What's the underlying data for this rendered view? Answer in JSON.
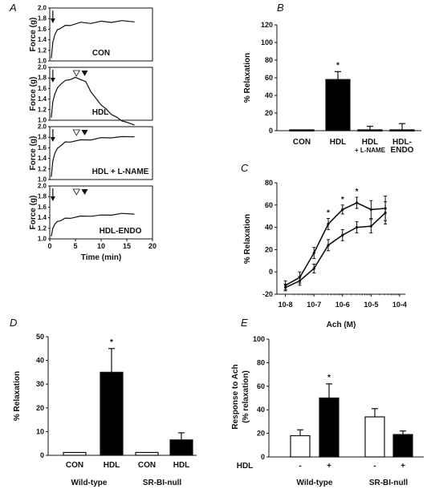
{
  "colors": {
    "ink": "#111111",
    "open": "#ffffff",
    "filled": "#000000"
  },
  "chart_data": [
    {
      "panel": "A",
      "type": "line",
      "ylabel": "Force (g)",
      "xlabel": "Time (min)",
      "xlim": [
        0,
        20
      ],
      "ylim": [
        1.0,
        2.0
      ],
      "xticks": [
        "0",
        "5",
        "10",
        "15",
        "20"
      ],
      "yticks": [
        "1.0",
        "1.2",
        "1.4",
        "1.6",
        "1.8",
        "2.0"
      ],
      "traces": [
        {
          "label": "CON",
          "open_marker_min": null,
          "filled_marker_min": null,
          "x": [
            0.3,
            0.6,
            1,
            1.5,
            2,
            3,
            4,
            6,
            8,
            10,
            12,
            14,
            16.5
          ],
          "y": [
            1.05,
            1.35,
            1.5,
            1.58,
            1.62,
            1.66,
            1.68,
            1.72,
            1.72,
            1.74,
            1.74,
            1.75,
            1.75
          ]
        },
        {
          "label": "HDL",
          "open_marker_min": 5.2,
          "filled_marker_min": 6.8,
          "x": [
            0.3,
            0.6,
            1,
            1.5,
            2,
            3,
            4,
            5,
            6,
            7,
            8,
            9,
            10,
            11,
            12,
            13,
            14,
            15,
            16.5
          ],
          "y": [
            1.05,
            1.35,
            1.5,
            1.6,
            1.68,
            1.74,
            1.78,
            1.8,
            1.78,
            1.72,
            1.55,
            1.4,
            1.3,
            1.2,
            1.12,
            1.05,
            1.0,
            0.95,
            0.92
          ]
        },
        {
          "label": "HDL + L-NAME",
          "open_marker_min": 5.2,
          "filled_marker_min": 6.8,
          "x": [
            0.3,
            0.6,
            1,
            1.5,
            2,
            3,
            4,
            6,
            8,
            10,
            12,
            14,
            16.5
          ],
          "y": [
            1.05,
            1.35,
            1.5,
            1.58,
            1.64,
            1.7,
            1.72,
            1.74,
            1.76,
            1.78,
            1.8,
            1.8,
            1.82
          ]
        },
        {
          "label": "HDL-ENDO",
          "open_marker_min": 5.2,
          "filled_marker_min": 6.8,
          "x": [
            0.3,
            0.6,
            1,
            1.5,
            2,
            3,
            4,
            6,
            8,
            10,
            12,
            14,
            16.5
          ],
          "y": [
            1.05,
            1.2,
            1.28,
            1.32,
            1.35,
            1.38,
            1.4,
            1.42,
            1.44,
            1.44,
            1.46,
            1.47,
            1.48
          ]
        }
      ]
    },
    {
      "panel": "B",
      "type": "bar",
      "ylabel": "% Relaxation",
      "ylim": [
        0,
        120
      ],
      "yticks": [
        "0",
        "20",
        "40",
        "60",
        "80",
        "100",
        "120"
      ],
      "categories": [
        "CON",
        "HDL",
        "HDL",
        "HDL-"
      ],
      "sublabels": [
        "",
        "",
        "+ L-NAME",
        "ENDO"
      ],
      "values": [
        1,
        58,
        1,
        1
      ],
      "errors": [
        0,
        9,
        4,
        7
      ],
      "fills": [
        "filled",
        "filled",
        "filled",
        "filled"
      ],
      "star": [
        false,
        true,
        false,
        false
      ]
    },
    {
      "panel": "C",
      "type": "line",
      "ylabel": "% Relaxation",
      "xlabel": "Ach (M)",
      "xscale": "log",
      "ylim": [
        -20,
        80
      ],
      "yticks": [
        "-20",
        "0",
        "20",
        "40",
        "60",
        "80"
      ],
      "xticks": [
        "10-8",
        "10-7",
        "10-6",
        "10-5",
        "10-4"
      ],
      "series": [
        {
          "x": [
            -8.0,
            -7.5,
            -7.0,
            -6.5,
            -6.0,
            -5.5,
            -5.0,
            -4.5
          ],
          "y": [
            -12,
            -5,
            17,
            43,
            56,
            62,
            56,
            57
          ],
          "err": [
            4,
            5,
            5,
            5,
            4,
            5,
            8,
            11
          ],
          "star": [
            false,
            false,
            false,
            true,
            true,
            true,
            false,
            false
          ]
        },
        {
          "x": [
            -8.0,
            -7.5,
            -7.0,
            -6.5,
            -6.0,
            -5.5,
            -5.0,
            -4.5
          ],
          "y": [
            -14,
            -8,
            3,
            24,
            33,
            40,
            41,
            53
          ],
          "err": [
            3,
            4,
            4,
            5,
            5,
            5,
            6,
            10
          ],
          "star": [
            false,
            false,
            false,
            false,
            false,
            false,
            false,
            false
          ]
        }
      ]
    },
    {
      "panel": "D",
      "type": "bar",
      "ylabel": "% Relaxation",
      "ylim": [
        0,
        50
      ],
      "yticks": [
        "0",
        "10",
        "20",
        "30",
        "40",
        "50"
      ],
      "categories": [
        "CON",
        "HDL",
        "CON",
        "HDL"
      ],
      "values": [
        1.2,
        35,
        1.2,
        6.5
      ],
      "errors": [
        0,
        10,
        0,
        3
      ],
      "fills": [
        "open",
        "filled",
        "open",
        "filled"
      ],
      "star": [
        false,
        true,
        false,
        false
      ],
      "groups": [
        "Wild-type",
        "SR-BI-null"
      ]
    },
    {
      "panel": "E",
      "type": "bar",
      "ylabel": "Response to Ach",
      "ylabel2": "(% relaxation)",
      "ylim": [
        0,
        100
      ],
      "yticks": [
        "0",
        "20",
        "40",
        "60",
        "80",
        "100"
      ],
      "hdl_row_label": "HDL",
      "categories": [
        "-",
        "+",
        "-",
        "+"
      ],
      "values": [
        18,
        50,
        34,
        19
      ],
      "errors": [
        5,
        12,
        7,
        3
      ],
      "fills": [
        "open",
        "filled",
        "open",
        "filled"
      ],
      "star": [
        false,
        true,
        false,
        false
      ],
      "groups": [
        "Wild-type",
        "SR-BI-null"
      ]
    }
  ]
}
